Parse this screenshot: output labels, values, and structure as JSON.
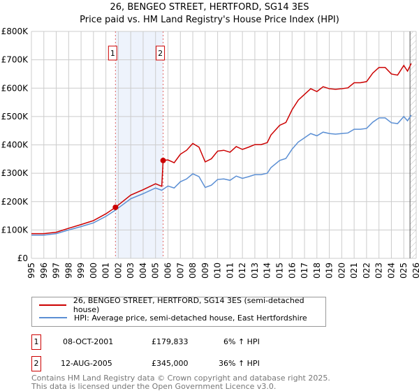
{
  "chart_data": {
    "type": "line",
    "title": "26, BENGEO STREET, HERTFORD, SG14 3ES",
    "subtitle": "Price paid vs. HM Land Registry's House Price Index (HPI)",
    "xlim": [
      1995,
      2026
    ],
    "ylim": [
      0,
      800000
    ],
    "grid": true,
    "x_ticks": [
      "1995",
      "1996",
      "1997",
      "1998",
      "1999",
      "2000",
      "2001",
      "2002",
      "2003",
      "2004",
      "2005",
      "2006",
      "2007",
      "2008",
      "2009",
      "2010",
      "2011",
      "2012",
      "2013",
      "2014",
      "2015",
      "2016",
      "2017",
      "2018",
      "2019",
      "2020",
      "2021",
      "2022",
      "2023",
      "2024",
      "2025",
      "2026"
    ],
    "y_ticks": [
      {
        "v": 0,
        "label": "£0"
      },
      {
        "v": 100000,
        "label": "£100K"
      },
      {
        "v": 200000,
        "label": "£200K"
      },
      {
        "v": 300000,
        "label": "£300K"
      },
      {
        "v": 400000,
        "label": "£400K"
      },
      {
        "v": 500000,
        "label": "£500K"
      },
      {
        "v": 600000,
        "label": "£600K"
      },
      {
        "v": 700000,
        "label": "£700K"
      },
      {
        "v": 800000,
        "label": "£800K"
      }
    ],
    "series": [
      {
        "name": "26, BENGEO STREET, HERTFORD, SG14 3ES (semi-detached house)",
        "color": "#cc0000",
        "points": [
          [
            1995,
            87
          ],
          [
            1996,
            87
          ],
          [
            1997,
            92
          ],
          [
            1998,
            106
          ],
          [
            1999,
            119
          ],
          [
            2000,
            133
          ],
          [
            2001,
            157
          ],
          [
            2001.77,
            179.8
          ],
          [
            2003,
            223
          ],
          [
            2004,
            242
          ],
          [
            2005,
            263
          ],
          [
            2005.5,
            254
          ],
          [
            2005.61,
            345
          ],
          [
            2006,
            347
          ],
          [
            2006.5,
            337
          ],
          [
            2007,
            367
          ],
          [
            2007.5,
            381
          ],
          [
            2008,
            405
          ],
          [
            2008.5,
            392
          ],
          [
            2009,
            340
          ],
          [
            2009.5,
            351
          ],
          [
            2010,
            378
          ],
          [
            2010.5,
            381
          ],
          [
            2011,
            374
          ],
          [
            2011.5,
            394
          ],
          [
            2012,
            384
          ],
          [
            2012.5,
            392
          ],
          [
            2013,
            401
          ],
          [
            2013.5,
            401
          ],
          [
            2014,
            408
          ],
          [
            2014.3,
            435
          ],
          [
            2015,
            469
          ],
          [
            2015.5,
            479
          ],
          [
            2016,
            524
          ],
          [
            2016.5,
            558
          ],
          [
            2017,
            578
          ],
          [
            2017.5,
            598
          ],
          [
            2018,
            588
          ],
          [
            2018.5,
            605
          ],
          [
            2019,
            598
          ],
          [
            2019.5,
            596
          ],
          [
            2020,
            598
          ],
          [
            2020.5,
            601
          ],
          [
            2021,
            619
          ],
          [
            2021.5,
            619
          ],
          [
            2022,
            623
          ],
          [
            2022.5,
            653
          ],
          [
            2023,
            673
          ],
          [
            2023.5,
            673
          ],
          [
            2024,
            650
          ],
          [
            2024.5,
            646
          ],
          [
            2025,
            680
          ],
          [
            2025.3,
            660
          ],
          [
            2025.6,
            687
          ]
        ]
      },
      {
        "name": "HPI: Average price, semi-detached house, East Hertfordshire",
        "color": "#5b8fd4",
        "points": [
          [
            1995,
            82
          ],
          [
            1996,
            82
          ],
          [
            1997,
            87
          ],
          [
            1998,
            100
          ],
          [
            1999,
            112
          ],
          [
            2000,
            125
          ],
          [
            2001,
            148
          ],
          [
            2001.77,
            170
          ],
          [
            2003,
            210
          ],
          [
            2004,
            228
          ],
          [
            2005,
            248
          ],
          [
            2005.5,
            240
          ],
          [
            2006,
            255
          ],
          [
            2006.5,
            248
          ],
          [
            2007,
            270
          ],
          [
            2007.5,
            280
          ],
          [
            2008,
            298
          ],
          [
            2008.5,
            288
          ],
          [
            2009,
            250
          ],
          [
            2009.5,
            258
          ],
          [
            2010,
            278
          ],
          [
            2010.5,
            280
          ],
          [
            2011,
            275
          ],
          [
            2011.5,
            290
          ],
          [
            2012,
            282
          ],
          [
            2012.5,
            288
          ],
          [
            2013,
            295
          ],
          [
            2013.5,
            295
          ],
          [
            2014,
            300
          ],
          [
            2014.3,
            320
          ],
          [
            2015,
            345
          ],
          [
            2015.5,
            352
          ],
          [
            2016,
            385
          ],
          [
            2016.5,
            410
          ],
          [
            2017,
            425
          ],
          [
            2017.5,
            440
          ],
          [
            2018,
            432
          ],
          [
            2018.5,
            445
          ],
          [
            2019,
            440
          ],
          [
            2019.5,
            438
          ],
          [
            2020,
            440
          ],
          [
            2020.5,
            442
          ],
          [
            2021,
            455
          ],
          [
            2021.5,
            455
          ],
          [
            2022,
            458
          ],
          [
            2022.5,
            480
          ],
          [
            2023,
            495
          ],
          [
            2023.5,
            495
          ],
          [
            2024,
            478
          ],
          [
            2024.5,
            475
          ],
          [
            2025,
            500
          ],
          [
            2025.3,
            485
          ],
          [
            2025.6,
            505
          ]
        ]
      }
    ],
    "sales": [
      {
        "label": "1",
        "x": 2001.77,
        "value": 179833
      },
      {
        "label": "2",
        "x": 2005.61,
        "value": 345000
      }
    ],
    "forecast_start": 2025.5
  },
  "legend": {
    "red": "26, BENGEO STREET, HERTFORD, SG14 3ES (semi-detached house)",
    "blue": "HPI: Average price, semi-detached house, East Hertfordshire"
  },
  "transactions": [
    {
      "num": "1",
      "date": "08-OCT-2001",
      "price": "£179,833",
      "hpi": "6% ↑ HPI"
    },
    {
      "num": "2",
      "date": "12-AUG-2005",
      "price": "£345,000",
      "hpi": "36% ↑ HPI"
    }
  ],
  "footer": {
    "line1": "Contains HM Land Registry data © Crown copyright and database right 2025.",
    "line2": "This data is licensed under the Open Government Licence v3.0."
  }
}
